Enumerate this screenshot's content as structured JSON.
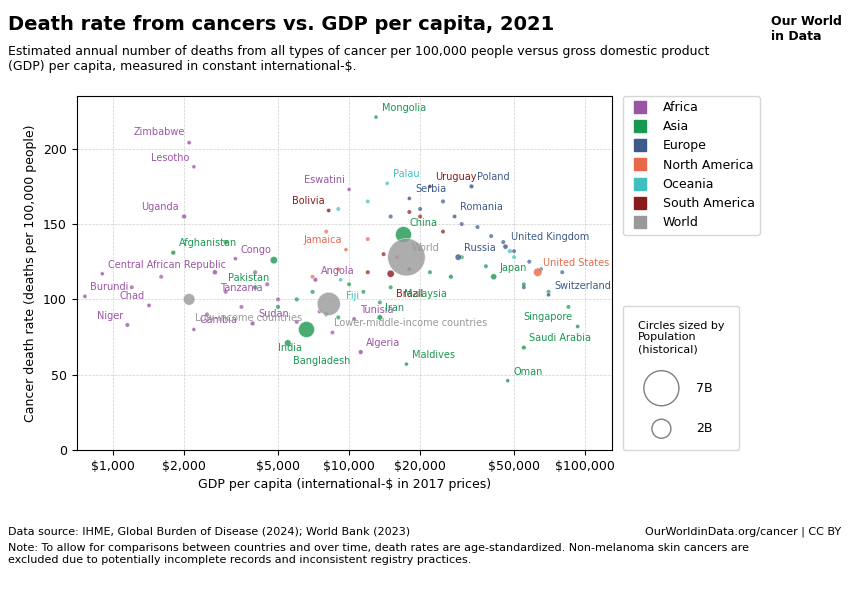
{
  "chart_data": {
    "type": "scatter",
    "title": "Death rate from cancers vs. GDP per capita, 2021",
    "subtitle": "Estimated annual number of deaths from all types of cancer per 100,000 people versus gross domestic product\n(GDP) per capita, measured in constant international-$.",
    "x_label": "GDP per capita (international-$ in 2017 prices)",
    "y_label": "Cancer death rate (deaths per 100,000 people)",
    "log": "x",
    "grid": true,
    "legend": "upper left",
    "xlim": [
      700,
      130000
    ],
    "ylim": [
      0,
      235
    ],
    "xticks": [
      {
        "value": 1000,
        "label": "$1,000"
      },
      {
        "value": 2000,
        "label": "$2,000"
      },
      {
        "value": 5000,
        "label": "$5,000"
      },
      {
        "value": 10000,
        "label": "$10,000"
      },
      {
        "value": 20000,
        "label": "$20,000"
      },
      {
        "value": 50000,
        "label": "$50,000"
      },
      {
        "value": 100000,
        "label": "$100,000"
      }
    ],
    "yticks": [
      0,
      50,
      100,
      150,
      200
    ],
    "regions": [
      {
        "name": "Africa",
        "color": "#9b55a5"
      },
      {
        "name": "Asia",
        "color": "#1a9850"
      },
      {
        "name": "Europe",
        "color": "#3d5a8a"
      },
      {
        "name": "North America",
        "color": "#e8694a"
      },
      {
        "name": "Oceania",
        "color": "#40bfbf"
      },
      {
        "name": "South America",
        "color": "#8b1a1a"
      },
      {
        "name": "World",
        "color": "#999999"
      }
    ],
    "unlabeled_points": [
      {
        "x": 1200,
        "y": 108,
        "region": "Africa",
        "size": 8000000
      },
      {
        "x": 1600,
        "y": 115,
        "region": "Africa",
        "size": 5000000
      },
      {
        "x": 2500,
        "y": 90,
        "region": "Africa",
        "size": 10000000
      },
      {
        "x": 3000,
        "y": 105,
        "region": "Africa",
        "size": 7000000
      },
      {
        "x": 3500,
        "y": 95,
        "region": "Africa",
        "size": 6000000
      },
      {
        "x": 4000,
        "y": 118,
        "region": "Africa",
        "size": 9000000
      },
      {
        "x": 4500,
        "y": 110,
        "region": "Africa",
        "size": 12000000
      },
      {
        "x": 5000,
        "y": 100,
        "region": "Africa",
        "size": 8000000
      },
      {
        "x": 6000,
        "y": 85,
        "region": "Africa",
        "size": 7000000
      },
      {
        "x": 7500,
        "y": 92,
        "region": "Africa",
        "size": 6000000
      },
      {
        "x": 8500,
        "y": 78,
        "region": "Africa",
        "size": 5000000
      },
      {
        "x": 3000,
        "y": 138,
        "region": "Asia",
        "size": 30000000
      },
      {
        "x": 4000,
        "y": 108,
        "region": "Asia",
        "size": 20000000
      },
      {
        "x": 5000,
        "y": 95,
        "region": "Asia",
        "size": 15000000
      },
      {
        "x": 6000,
        "y": 100,
        "region": "Asia",
        "size": 12000000
      },
      {
        "x": 7000,
        "y": 105,
        "region": "Asia",
        "size": 10000000
      },
      {
        "x": 8000,
        "y": 90,
        "region": "Asia",
        "size": 8000000
      },
      {
        "x": 9000,
        "y": 88,
        "region": "Asia",
        "size": 7000000
      },
      {
        "x": 10000,
        "y": 110,
        "region": "Asia",
        "size": 6000000
      },
      {
        "x": 11500,
        "y": 105,
        "region": "Asia",
        "size": 5000000
      },
      {
        "x": 13500,
        "y": 98,
        "region": "Asia",
        "size": 4000000
      },
      {
        "x": 15000,
        "y": 108,
        "region": "Asia",
        "size": 5000000
      },
      {
        "x": 18000,
        "y": 120,
        "region": "Asia",
        "size": 6000000
      },
      {
        "x": 22000,
        "y": 118,
        "region": "Asia",
        "size": 7000000
      },
      {
        "x": 30000,
        "y": 128,
        "region": "Asia",
        "size": 8000000
      },
      {
        "x": 38000,
        "y": 122,
        "region": "Asia",
        "size": 5000000
      },
      {
        "x": 55000,
        "y": 110,
        "region": "Asia",
        "size": 4000000
      },
      {
        "x": 70000,
        "y": 105,
        "region": "Asia",
        "size": 3000000
      },
      {
        "x": 85000,
        "y": 95,
        "region": "Asia",
        "size": 2000000
      },
      {
        "x": 15000,
        "y": 155,
        "region": "Europe",
        "size": 10000000
      },
      {
        "x": 20000,
        "y": 160,
        "region": "Europe",
        "size": 8000000
      },
      {
        "x": 25000,
        "y": 165,
        "region": "Europe",
        "size": 9000000
      },
      {
        "x": 30000,
        "y": 150,
        "region": "Europe",
        "size": 7000000
      },
      {
        "x": 35000,
        "y": 148,
        "region": "Europe",
        "size": 6000000
      },
      {
        "x": 40000,
        "y": 142,
        "region": "Europe",
        "size": 5000000
      },
      {
        "x": 45000,
        "y": 138,
        "region": "Europe",
        "size": 7000000
      },
      {
        "x": 50000,
        "y": 132,
        "region": "Europe",
        "size": 6000000
      },
      {
        "x": 58000,
        "y": 125,
        "region": "Europe",
        "size": 5000000
      },
      {
        "x": 65000,
        "y": 120,
        "region": "Europe",
        "size": 4000000
      },
      {
        "x": 80000,
        "y": 118,
        "region": "Europe",
        "size": 3000000
      },
      {
        "x": 55000,
        "y": 108,
        "region": "Europe",
        "size": 4000000
      },
      {
        "x": 12000,
        "y": 140,
        "region": "North America",
        "size": 5000000
      },
      {
        "x": 16000,
        "y": 128,
        "region": "North America",
        "size": 4000000
      },
      {
        "x": 8000,
        "y": 145,
        "region": "North America",
        "size": 3000000
      },
      {
        "x": 9000,
        "y": 120,
        "region": "North America",
        "size": 2000000
      },
      {
        "x": 7000,
        "y": 115,
        "region": "North America",
        "size": 1500000
      },
      {
        "x": 12000,
        "y": 118,
        "region": "South America",
        "size": 8000000
      },
      {
        "x": 14000,
        "y": 130,
        "region": "South America",
        "size": 6000000
      },
      {
        "x": 18000,
        "y": 158,
        "region": "South America",
        "size": 5000000
      },
      {
        "x": 20000,
        "y": 155,
        "region": "South America",
        "size": 4000000
      },
      {
        "x": 25000,
        "y": 145,
        "region": "South America",
        "size": 3000000
      },
      {
        "x": 9000,
        "y": 160,
        "region": "Oceania",
        "size": 500000
      },
      {
        "x": 12000,
        "y": 165,
        "region": "Oceania",
        "size": 300000
      },
      {
        "x": 48000,
        "y": 132,
        "region": "Oceania",
        "size": 25000000
      },
      {
        "x": 50000,
        "y": 128,
        "region": "Oceania",
        "size": 5000000
      }
    ],
    "points": [
      {
        "name": "Zimbabwe",
        "x": 2100,
        "y": 204,
        "region": "Africa",
        "size": 15000000
      },
      {
        "name": "Lesotho",
        "x": 2200,
        "y": 188,
        "region": "Africa",
        "size": 2200000
      },
      {
        "name": "Uganda",
        "x": 2000,
        "y": 155,
        "region": "Africa",
        "size": 46000000
      },
      {
        "name": "Central African Republic",
        "x": 900,
        "y": 117,
        "region": "Africa",
        "size": 5000000
      },
      {
        "name": "Burundi",
        "x": 760,
        "y": 102,
        "region": "Africa",
        "size": 12000000
      },
      {
        "name": "Chad",
        "x": 1420,
        "y": 96,
        "region": "Africa",
        "size": 17000000
      },
      {
        "name": "Niger",
        "x": 1150,
        "y": 83,
        "region": "Africa",
        "size": 25000000
      },
      {
        "name": "Gambia",
        "x": 2200,
        "y": 80,
        "region": "Africa",
        "size": 2500000
      },
      {
        "name": "Afghanistan",
        "x": 1800,
        "y": 131,
        "region": "Asia",
        "size": 40000000
      },
      {
        "name": "Congo",
        "x": 3300,
        "y": 127,
        "region": "Africa",
        "size": 6000000
      },
      {
        "name": "Tanzania",
        "x": 2700,
        "y": 118,
        "region": "Africa",
        "size": 63000000
      },
      {
        "name": "Pakistan",
        "x": 4800,
        "y": 126,
        "region": "Asia",
        "size": 225000000
      },
      {
        "name": "Angola",
        "x": 7200,
        "y": 113,
        "region": "Africa",
        "size": 34000000
      },
      {
        "name": "Sudan",
        "x": 3900,
        "y": 84,
        "region": "Africa",
        "size": 45000000
      },
      {
        "name": "Bangladesh",
        "x": 5500,
        "y": 71,
        "region": "Asia",
        "size": 167000000
      },
      {
        "name": "India",
        "x": 6600,
        "y": 80,
        "region": "Asia",
        "size": 1400000000
      },
      {
        "name": "Bolivia",
        "x": 8200,
        "y": 159,
        "region": "South America",
        "size": 12000000
      },
      {
        "name": "Jamaica",
        "x": 9700,
        "y": 133,
        "region": "North America",
        "size": 3000000
      },
      {
        "name": "Fiji",
        "x": 9200,
        "y": 113,
        "region": "Oceania",
        "size": 900000
      },
      {
        "name": "Tunisia",
        "x": 10500,
        "y": 87,
        "region": "Africa",
        "size": 12000000
      },
      {
        "name": "Algeria",
        "x": 11200,
        "y": 65,
        "region": "Africa",
        "size": 44000000
      },
      {
        "name": "Eswatini",
        "x": 10000,
        "y": 173,
        "region": "Africa",
        "size": 1200000
      },
      {
        "name": "Mongolia",
        "x": 13000,
        "y": 221,
        "region": "Asia",
        "size": 3300000
      },
      {
        "name": "Palau",
        "x": 14500,
        "y": 177,
        "region": "Oceania",
        "size": 18000
      },
      {
        "name": "Serbia",
        "x": 18000,
        "y": 167,
        "region": "Europe",
        "size": 7000000
      },
      {
        "name": "Romania",
        "x": 28000,
        "y": 155,
        "region": "Europe",
        "size": 19000000
      },
      {
        "name": "Poland",
        "x": 33000,
        "y": 175,
        "region": "Europe",
        "size": 38000000
      },
      {
        "name": "Uruguay",
        "x": 22000,
        "y": 175,
        "region": "South America",
        "size": 3500000
      },
      {
        "name": "China",
        "x": 17000,
        "y": 143,
        "region": "Asia",
        "size": 1400000000
      },
      {
        "name": "Brazil",
        "x": 15000,
        "y": 117,
        "region": "South America",
        "size": 215000000
      },
      {
        "name": "Iran",
        "x": 13500,
        "y": 88,
        "region": "Asia",
        "size": 85000000
      },
      {
        "name": "Maldives",
        "x": 17500,
        "y": 57,
        "region": "Asia",
        "size": 500000
      },
      {
        "name": "Malaysia",
        "x": 27000,
        "y": 115,
        "region": "Asia",
        "size": 33000000
      },
      {
        "name": "Russia",
        "x": 29000,
        "y": 128,
        "region": "Europe",
        "size": 144000000
      },
      {
        "name": "Japan",
        "x": 41000,
        "y": 115,
        "region": "Asia",
        "size": 125000000
      },
      {
        "name": "United Kingdom",
        "x": 46000,
        "y": 135,
        "region": "Europe",
        "size": 67000000
      },
      {
        "name": "Switzerland",
        "x": 70000,
        "y": 103,
        "region": "Europe",
        "size": 8700000
      },
      {
        "name": "United States",
        "x": 63000,
        "y": 118,
        "region": "North America",
        "size": 330000000
      },
      {
        "name": "Singapore",
        "x": 93000,
        "y": 82,
        "region": "Asia",
        "size": 5800000
      },
      {
        "name": "Saudi Arabia",
        "x": 55000,
        "y": 68,
        "region": "Asia",
        "size": 35000000
      },
      {
        "name": "Oman",
        "x": 47000,
        "y": 46,
        "region": "Asia",
        "size": 4500000
      },
      {
        "name": "World",
        "x": 17500,
        "y": 128,
        "region": "World",
        "size": 8000000000
      },
      {
        "name": "Low-income countries",
        "x": 2100,
        "y": 100,
        "region": "World",
        "size": 700000000
      },
      {
        "name": "Lower-middle-income countries",
        "x": 8200,
        "y": 97,
        "region": "World",
        "size": 3000000000
      }
    ],
    "size_legend": {
      "title": "Circles sized by\nPopulation\n(historical)",
      "entries": [
        {
          "value": 7000000000,
          "label": "7B"
        },
        {
          "value": 2000000000,
          "label": "2B"
        }
      ]
    },
    "source": "Data source: IHME, Global Burden of Disease (2024); World Bank (2023)",
    "website": "OurWorldinData.org/cancer | CC BY",
    "note": "Note: To allow for comparisons between countries and over time, death rates are age-standardized. Non-melanoma skin cancers are\nexcluded due to potentially incomplete records and inconsistent registry practices.",
    "logo": "Our World\nin Data"
  }
}
